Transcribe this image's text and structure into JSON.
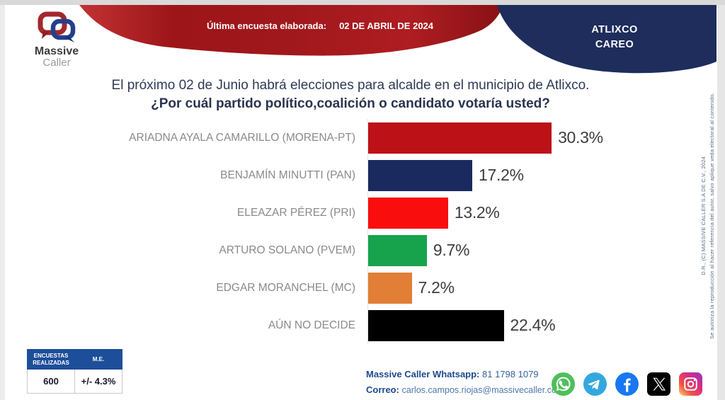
{
  "header": {
    "logo": {
      "line1": "Massive",
      "line2": "Caller"
    },
    "banner": {
      "label": "Última encuesta elaborada:",
      "date": "02 DE ABRIL DE 2024"
    },
    "region": {
      "line1": "ATLIXCO",
      "line2": "CAREO"
    },
    "colors": {
      "banner_red_dark": "#9D1519",
      "banner_red_bright": "#C23234",
      "banner_navy": "#1E2D5C"
    }
  },
  "question": {
    "line1": "El próximo 02 de Junio habrá elecciones para alcalde en el municipio de Atlixco.",
    "line2": "¿Por cuál partido político,coalición o candidato votaría usted?"
  },
  "chart_data": {
    "type": "bar",
    "orientation": "horizontal",
    "categories": [
      "ARIADNA AYALA CAMARILLO (MORENA-PT)",
      "BENJAMÍN MINUTTI (PAN)",
      "ELEAZAR PÉREZ (PRI)",
      "ARTURO SOLANO (PVEM)",
      "EDGAR MORANCHEL (MC)",
      "AÚN NO DECIDE"
    ],
    "values": [
      30.3,
      17.2,
      13.2,
      9.7,
      7.2,
      22.4
    ],
    "value_labels": [
      "30.3%",
      "17.2%",
      "13.2%",
      "9.7%",
      "7.2%",
      "22.4%"
    ],
    "colors": [
      "#BD1118",
      "#1A2A5E",
      "#F90D0D",
      "#16A34C",
      "#E07F35",
      "#000000"
    ],
    "title": "",
    "xlabel": "",
    "ylabel": "",
    "xlim": [
      0,
      35
    ],
    "grid": false,
    "legend": false
  },
  "stats_table": {
    "headers": [
      "ENCUESTAS REALIZADAS",
      "M.E."
    ],
    "values": [
      "600",
      "+/- 4.3%"
    ]
  },
  "contact": {
    "whatsapp_label": "Massive Caller Whatsapp:",
    "whatsapp_number": "81 1798 1079",
    "email_label": "Correo:",
    "email": "carlos.campos.riojas@massivecaller.com"
  },
  "social_icons": [
    "whatsapp",
    "telegram",
    "facebook",
    "x",
    "instagram"
  ],
  "legal": {
    "line1": "D.R., (C) MASSIVE CALLER S.A DE C.V., 2024",
    "line2": "Se autoriza la reproducción al hacer referencia del autor, salvo aplique veda electoral al contenido."
  }
}
